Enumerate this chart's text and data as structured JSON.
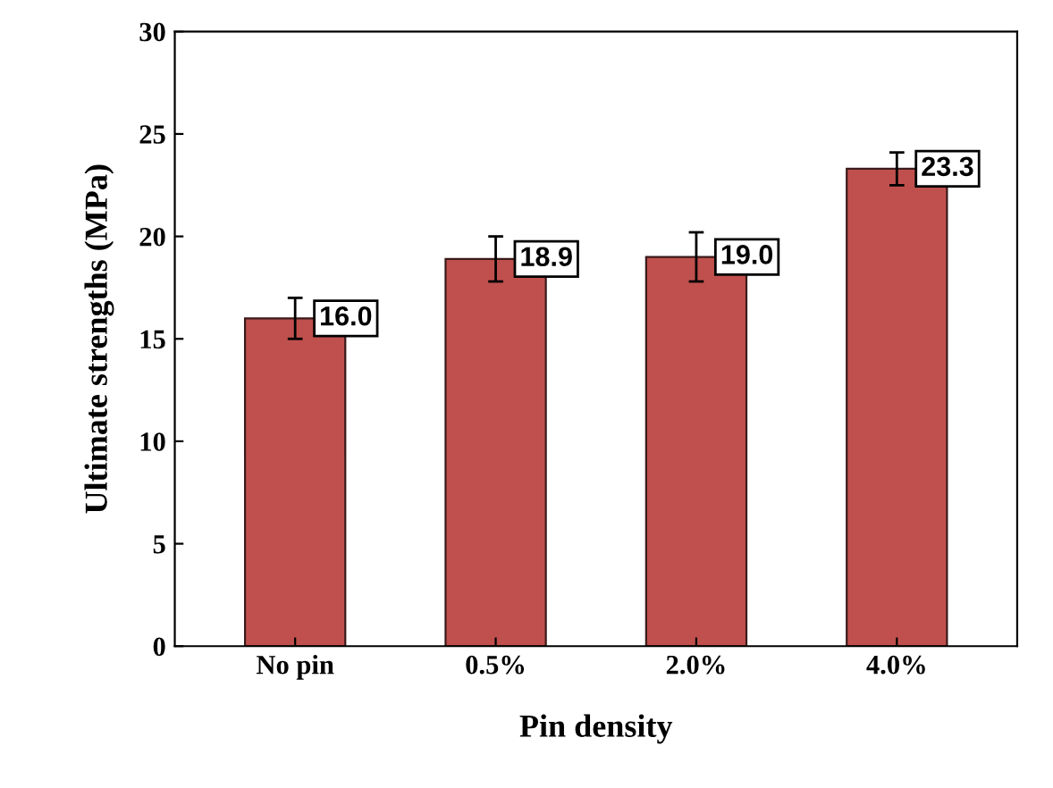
{
  "chart_data": {
    "type": "bar",
    "xlabel": "Pin density",
    "ylabel": "Ultimate strengths (MPa)",
    "categories": [
      "No pin",
      "0.5%",
      "2.0%",
      "4.0%"
    ],
    "values": [
      16.0,
      18.9,
      19.0,
      23.3
    ],
    "errors": [
      1.0,
      1.1,
      1.2,
      0.8
    ],
    "color": "#c0504d",
    "ylim": [
      0,
      30
    ],
    "yticks": [
      0,
      5,
      10,
      15,
      20,
      25,
      30
    ],
    "value_labels": [
      "16.0",
      "18.9",
      "19.0",
      "23.3"
    ],
    "grid": false
  }
}
